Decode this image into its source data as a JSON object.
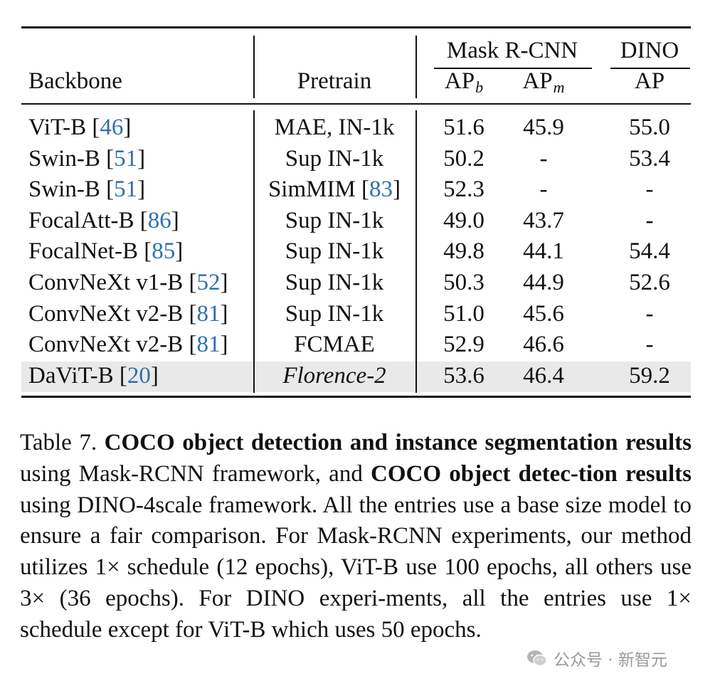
{
  "table": {
    "headers": {
      "backbone": "Backbone",
      "pretrain": "Pretrain",
      "group_maskrcnn": "Mask R-CNN",
      "group_dino": "DINO",
      "ap_b_base": "AP",
      "ap_b_sub": "b",
      "ap_m_base": "AP",
      "ap_m_sub": "m",
      "ap": "AP"
    },
    "rows": [
      {
        "backbone": "ViT-B [",
        "cite": "46",
        "close": "]",
        "pretrain": "MAE, IN-1k",
        "pretrain_cite": "",
        "pretrain_close": "",
        "apb": "51.6",
        "apm": "45.9",
        "ap": "55.0"
      },
      {
        "backbone": "Swin-B [",
        "cite": "51",
        "close": "]",
        "pretrain": "Sup IN-1k",
        "pretrain_cite": "",
        "pretrain_close": "",
        "apb": "50.2",
        "apm": "-",
        "ap": "53.4"
      },
      {
        "backbone": "Swin-B [",
        "cite": "51",
        "close": "]",
        "pretrain": "SimMIM [",
        "pretrain_cite": "83",
        "pretrain_close": "]",
        "apb": "52.3",
        "apm": "-",
        "ap": "-"
      },
      {
        "backbone": "FocalAtt-B [",
        "cite": "86",
        "close": "]",
        "pretrain": "Sup IN-1k",
        "pretrain_cite": "",
        "pretrain_close": "",
        "apb": "49.0",
        "apm": "43.7",
        "ap": "-"
      },
      {
        "backbone": "FocalNet-B [",
        "cite": "85",
        "close": "]",
        "pretrain": "Sup IN-1k",
        "pretrain_cite": "",
        "pretrain_close": "",
        "apb": "49.8",
        "apm": "44.1",
        "ap": "54.4"
      },
      {
        "backbone": "ConvNeXt v1-B [",
        "cite": "52",
        "close": "]",
        "pretrain": "Sup IN-1k",
        "pretrain_cite": "",
        "pretrain_close": "",
        "apb": "50.3",
        "apm": "44.9",
        "ap": "52.6"
      },
      {
        "backbone": "ConvNeXt v2-B [",
        "cite": "81",
        "close": "]",
        "pretrain": "Sup IN-1k",
        "pretrain_cite": "",
        "pretrain_close": "",
        "apb": "51.0",
        "apm": "45.6",
        "ap": "-"
      },
      {
        "backbone": "ConvNeXt v2-B [",
        "cite": "81",
        "close": "]",
        "pretrain": "FCMAE",
        "pretrain_cite": "",
        "pretrain_close": "",
        "apb": "52.9",
        "apm": "46.6",
        "ap": "-"
      },
      {
        "backbone": "DaViT-B [",
        "cite": "20",
        "close": "]",
        "pretrain": "Florence-2",
        "pretrain_cite": "",
        "pretrain_close": "",
        "apb": "53.6",
        "apm": "46.4",
        "ap": "59.2"
      }
    ]
  },
  "caption": {
    "p1": "Table 7.  ",
    "b1": "COCO object detection and instance segmentation results",
    "p2": " using Mask-RCNN framework, and ",
    "b2": "COCO object detec-tion results",
    "p3": " using DINO-4scale framework.  All the entries use a base size model to ensure a fair comparison.  For Mask-RCNN experiments, our method utilizes 1× schedule (12 epochs), ViT-B use 100 epochs, all others use 3× (36 epochs). For DINO experi-ments, all the entries use 1× schedule except for ViT-B which uses 50 epochs."
  },
  "watermark": {
    "text": "公众号 · 新智元",
    "icon": "wechat-icon"
  }
}
